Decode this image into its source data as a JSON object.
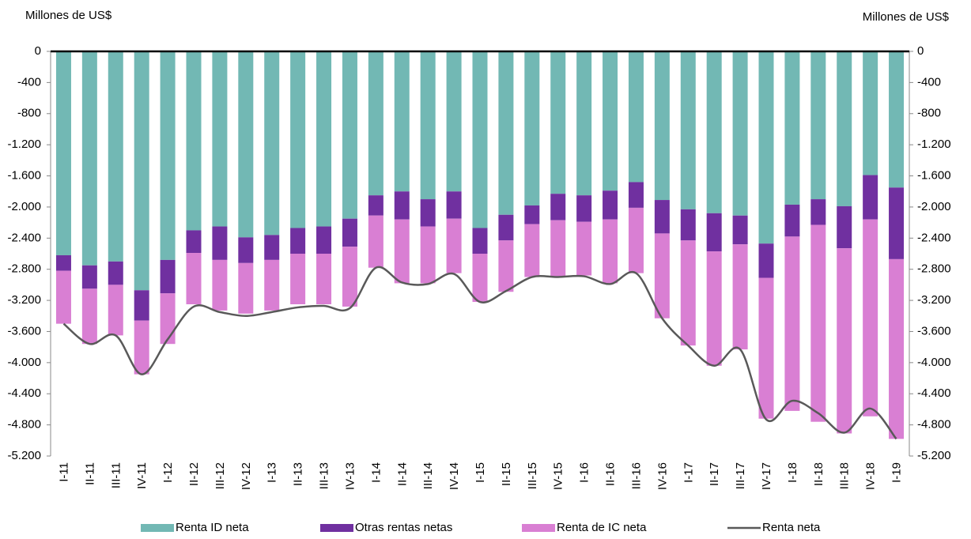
{
  "chart_data": {
    "type": "stacked-bar-line",
    "y_label": "Millones de US$",
    "y2_label": "Millones de US$",
    "categories": [
      "I-11",
      "II-11",
      "III-11",
      "IV-11",
      "I-12",
      "II-12",
      "III-12",
      "IV-12",
      "I-13",
      "II-13",
      "III-13",
      "IV-13",
      "I-14",
      "II-14",
      "III-14",
      "IV-14",
      "I-15",
      "II-15",
      "III-15",
      "IV-15",
      "I-16",
      "II-16",
      "III-16",
      "IV-16",
      "I-17",
      "II-17",
      "III-17",
      "IV-17",
      "I-18",
      "II-18",
      "III-18",
      "IV-18",
      "I-19"
    ],
    "series": [
      {
        "name": "Renta ID neta",
        "type": "bar",
        "color": "#72b8b4",
        "values": [
          -2620,
          -2750,
          -2700,
          -3070,
          -2680,
          -2300,
          -2250,
          -2390,
          -2360,
          -2270,
          -2250,
          -2150,
          -1850,
          -1800,
          -1900,
          -1800,
          -2270,
          -2100,
          -1980,
          -1830,
          -1850,
          -1790,
          -1680,
          -1910,
          -2030,
          -2080,
          -2110,
          -2470,
          -1970,
          -1900,
          -1990,
          -1590,
          -1750
        ]
      },
      {
        "name": "Otras rentas netas",
        "type": "bar",
        "color": "#7030a0",
        "values": [
          -200,
          -300,
          -300,
          -390,
          -430,
          -290,
          -430,
          -330,
          -320,
          -330,
          -350,
          -360,
          -260,
          -360,
          -350,
          -350,
          -330,
          -330,
          -240,
          -340,
          -340,
          -370,
          -330,
          -430,
          -400,
          -490,
          -370,
          -440,
          -410,
          -330,
          -540,
          -570,
          -920
        ]
      },
      {
        "name": "Renta de IC neta",
        "type": "bar",
        "color": "#d97fd3",
        "values": [
          -680,
          -710,
          -650,
          -690,
          -650,
          -660,
          -650,
          -650,
          -650,
          -650,
          -650,
          -770,
          -670,
          -820,
          -730,
          -700,
          -620,
          -660,
          -680,
          -730,
          -690,
          -820,
          -840,
          -1090,
          -1350,
          -1470,
          -1350,
          -1810,
          -2240,
          -2530,
          -2380,
          -2530,
          -2310
        ]
      },
      {
        "name": "Renta neta",
        "type": "line",
        "color": "#595959",
        "values": [
          -3500,
          -3760,
          -3650,
          -4150,
          -3700,
          -3280,
          -3350,
          -3400,
          -3350,
          -3290,
          -3270,
          -3300,
          -2780,
          -2970,
          -2990,
          -2860,
          -3220,
          -3080,
          -2900,
          -2900,
          -2890,
          -2990,
          -2850,
          -3430,
          -3780,
          -4040,
          -3830,
          -4730,
          -4490,
          -4650,
          -4900,
          -4590,
          -4980
        ]
      }
    ],
    "ylim": [
      -5200,
      0
    ],
    "yticks": [
      0,
      -400,
      -800,
      {
        "value": -1200,
        "label": "-1.200"
      },
      {
        "value": -1600,
        "label": "-1.600"
      },
      {
        "value": -2000,
        "label": "-2.000"
      },
      {
        "value": -2400,
        "label": "-2.400"
      },
      {
        "value": -2800,
        "label": "-2.800"
      },
      {
        "value": -3200,
        "label": "-3.200"
      },
      {
        "value": -3600,
        "label": "-3.600"
      },
      {
        "value": -4000,
        "label": "-4.000"
      },
      {
        "value": -4400,
        "label": "-4.400"
      },
      {
        "value": -4800,
        "label": "-4.800"
      },
      {
        "value": -5200,
        "label": "-5.200"
      }
    ],
    "y2lim": [
      -5200,
      0
    ],
    "y2ticks": [
      0,
      -400,
      -800,
      {
        "value": -1200,
        "label": "-1.200"
      },
      {
        "value": -1600,
        "label": "-1.600"
      },
      {
        "value": -2000,
        "label": "-2.000"
      },
      {
        "value": -2400,
        "label": "-2.400"
      },
      {
        "value": -2800,
        "label": "-2.800"
      },
      {
        "value": -3200,
        "label": "-3.200"
      },
      {
        "value": -3600,
        "label": "-3.600"
      },
      {
        "value": -4000,
        "label": "-4.000"
      },
      {
        "value": -4400,
        "label": "-4.400"
      },
      {
        "value": -4800,
        "label": "-4.800"
      },
      {
        "value": -5200,
        "label": "-5.200"
      }
    ],
    "legend": "bottom"
  }
}
